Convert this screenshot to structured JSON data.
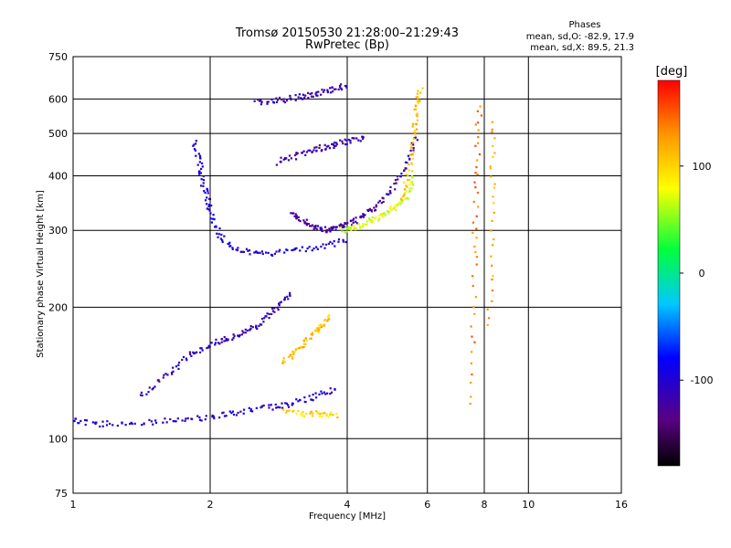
{
  "header": {
    "title_line1": "Tromsø 20150530 21:28:00–21:29:43",
    "title_line2": "RwPretec (Bp)"
  },
  "phases": {
    "title": "Phases",
    "line_o": "mean, sd,O:  -82.9, 17.9",
    "line_x": "mean, sd,X:  89.5, 21.3"
  },
  "colorbar": {
    "label": "[deg]",
    "ticks": [
      "100",
      "0",
      "-100"
    ],
    "tick_values": [
      100,
      0,
      -100
    ],
    "range": [
      -180,
      180
    ]
  },
  "chart_data": {
    "type": "scatter",
    "title": "Tromsø 20150530 21:28:00–21:29:43",
    "subtitle": "RwPretec (Bp)",
    "xlabel": "Frequency [MHz]",
    "ylabel": "Stationary phase Virtual Height [km]",
    "xscale": "log",
    "yscale": "log",
    "xlim": [
      1,
      16
    ],
    "ylim": [
      75,
      750
    ],
    "x_ticks": [
      1,
      2,
      4,
      8,
      16
    ],
    "x_tick_labels": [
      "1",
      "2",
      "4",
      "8",
      "16"
    ],
    "x_minor_ticks": [
      6,
      10
    ],
    "x_minor_tick_labels": [
      "6",
      "10"
    ],
    "y_ticks": [
      75,
      100,
      200,
      300,
      400,
      500,
      600,
      750
    ],
    "y_tick_labels": [
      "75",
      "100",
      "200",
      "300",
      "400",
      "500",
      "600",
      "750"
    ],
    "grid": true,
    "color_scale": "phase in degrees (rainbow, -180 to 180)",
    "traces": [
      {
        "x": [
          1.0,
          1.15,
          1.4,
          1.7,
          2.0,
          2.3,
          2.7,
          3.0,
          3.4,
          3.8
        ],
        "y": [
          110,
          108,
          109,
          110,
          112,
          115,
          118,
          120,
          125,
          130
        ],
        "phase": -100
      },
      {
        "x": [
          1.4,
          1.6,
          1.8,
          2.0,
          2.2,
          2.4,
          2.6,
          2.8,
          3.0
        ],
        "y": [
          125,
          140,
          155,
          165,
          170,
          175,
          185,
          200,
          215
        ],
        "phase": -110
      },
      {
        "x": [
          1.85,
          1.9,
          1.95,
          2.0,
          2.1,
          2.3,
          2.6,
          3.0,
          3.5,
          4.0
        ],
        "y": [
          480,
          420,
          370,
          330,
          290,
          270,
          265,
          268,
          275,
          285
        ],
        "phase": -95
      },
      {
        "x": [
          3.0,
          3.2,
          3.4,
          3.6,
          3.8,
          4.0,
          4.3,
          4.6,
          5.0,
          5.4,
          5.7
        ],
        "y": [
          330,
          315,
          305,
          300,
          305,
          310,
          320,
          340,
          370,
          420,
          500
        ],
        "phase": -120
      },
      {
        "x": [
          2.5,
          2.8,
          3.1,
          3.4,
          3.7,
          4.0
        ],
        "y": [
          590,
          595,
          605,
          615,
          630,
          645
        ],
        "phase": -110
      },
      {
        "x": [
          2.8,
          3.1,
          3.4,
          3.7,
          4.0,
          4.4
        ],
        "y": [
          430,
          445,
          460,
          470,
          480,
          490
        ],
        "phase": -115
      },
      {
        "x": [
          3.9,
          4.2,
          4.5,
          4.8,
          5.1,
          5.4,
          5.6
        ],
        "y": [
          300,
          305,
          315,
          325,
          340,
          360,
          400
        ],
        "phase": 70
      },
      {
        "x": [
          5.3,
          5.5,
          5.6,
          5.7,
          5.8
        ],
        "y": [
          350,
          420,
          500,
          580,
          630
        ],
        "phase": 110
      },
      {
        "x": [
          2.9,
          3.2,
          3.5,
          3.8
        ],
        "y": [
          115,
          114,
          114,
          113
        ],
        "phase": 100
      },
      {
        "x": [
          2.9,
          3.1,
          3.3,
          3.5,
          3.7
        ],
        "y": [
          150,
          160,
          170,
          180,
          190
        ],
        "phase": 110
      },
      {
        "x": [
          7.5,
          7.6,
          7.7,
          7.8
        ],
        "y": [
          120,
          250,
          400,
          600
        ],
        "phase": 140
      },
      {
        "x": [
          8.2,
          8.3,
          8.4
        ],
        "y": [
          180,
          350,
          550
        ],
        "phase": 120
      }
    ]
  }
}
